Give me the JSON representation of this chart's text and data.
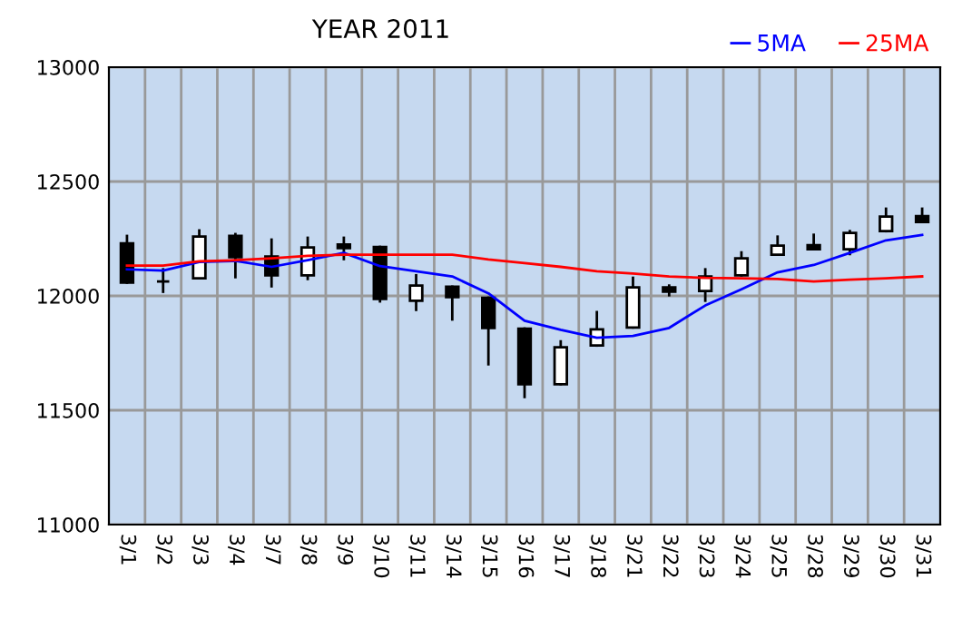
{
  "chart_data": {
    "type": "candlestick",
    "title": "YEAR 2011",
    "categories": [
      "3/1",
      "3/2",
      "3/3",
      "3/4",
      "3/7",
      "3/8",
      "3/9",
      "3/10",
      "3/11",
      "3/14",
      "3/15",
      "3/16",
      "3/17",
      "3/18",
      "3/21",
      "3/22",
      "3/23",
      "3/24",
      "3/25",
      "3/28",
      "3/29",
      "3/30",
      "3/31"
    ],
    "ohlc": [
      [
        12230,
        12262,
        12058,
        12058
      ],
      [
        12063,
        12116,
        12018,
        12063
      ],
      [
        12077,
        12286,
        12077,
        12259
      ],
      [
        12262,
        12270,
        12082,
        12169
      ],
      [
        12172,
        12246,
        12042,
        12090
      ],
      [
        12090,
        12254,
        12074,
        12212
      ],
      [
        12225,
        12254,
        12161,
        12209
      ],
      [
        12214,
        12214,
        11976,
        11987
      ],
      [
        11979,
        12090,
        11939,
        12045
      ],
      [
        12040,
        12040,
        11897,
        11995
      ],
      [
        11992,
        11992,
        11701,
        11860
      ],
      [
        11857,
        11857,
        11558,
        11614
      ],
      [
        11614,
        11801,
        11614,
        11775
      ],
      [
        11783,
        11929,
        11783,
        11854
      ],
      [
        11862,
        12079,
        11862,
        12037
      ],
      [
        12037,
        12045,
        12003,
        12018
      ],
      [
        12021,
        12116,
        11979,
        12085
      ],
      [
        12090,
        12190,
        12090,
        12164
      ],
      [
        12180,
        12259,
        12180,
        12220
      ],
      [
        12222,
        12267,
        12204,
        12204
      ],
      [
        12204,
        12283,
        12183,
        12275
      ],
      [
        12283,
        12381,
        12283,
        12347
      ],
      [
        12349,
        12381,
        12323,
        12323
      ]
    ],
    "series": [
      {
        "name": "5MA",
        "type": "line",
        "color": "#0000ff",
        "values": [
          12116,
          12111,
          12148,
          12153,
          12127,
          12156,
          12188,
          12130,
          12108,
          12085,
          12011,
          11891,
          11852,
          11817,
          11825,
          11860,
          11958,
          12029,
          12103,
          12135,
          12188,
          12243,
          12267
        ]
      },
      {
        "name": "25MA",
        "type": "line",
        "color": "#ff0000",
        "values": [
          12132,
          12132,
          12151,
          12156,
          12164,
          12175,
          12180,
          12180,
          12180,
          12180,
          12159,
          12143,
          12127,
          12108,
          12098,
          12085,
          12079,
          12077,
          12074,
          12063,
          12071,
          12077,
          12085
        ]
      }
    ],
    "ylim": [
      11000,
      13000
    ],
    "yticks": [
      11000,
      11500,
      12000,
      12500,
      13000
    ],
    "grid": true,
    "legend": "top right",
    "marker": "none",
    "line_style": "solid"
  }
}
